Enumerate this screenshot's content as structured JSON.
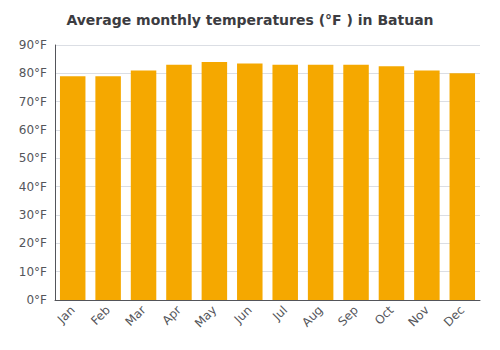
{
  "chart_data": {
    "type": "bar",
    "title": "Average monthly temperatures (°F ) in Batuan",
    "categories": [
      "Jan",
      "Feb",
      "Mar",
      "Apr",
      "May",
      "Jun",
      "Jul",
      "Aug",
      "Sep",
      "Oct",
      "Nov",
      "Dec"
    ],
    "values": [
      79,
      79,
      81,
      83,
      84,
      83.5,
      83,
      83,
      83,
      82.5,
      81,
      80
    ],
    "color": "#F5A800",
    "ylim": [
      0,
      90
    ],
    "yticks": [
      {
        "value": 0,
        "label": "0°F"
      },
      {
        "value": 10,
        "label": "10°F"
      },
      {
        "value": 20,
        "label": "20°F"
      },
      {
        "value": 30,
        "label": "30°F"
      },
      {
        "value": 40,
        "label": "40°F"
      },
      {
        "value": 50,
        "label": "50°F"
      },
      {
        "value": 60,
        "label": "60°F"
      },
      {
        "value": 70,
        "label": "70°F"
      },
      {
        "value": 80,
        "label": "80°F"
      },
      {
        "value": 90,
        "label": "90°F"
      }
    ],
    "grid": true
  }
}
